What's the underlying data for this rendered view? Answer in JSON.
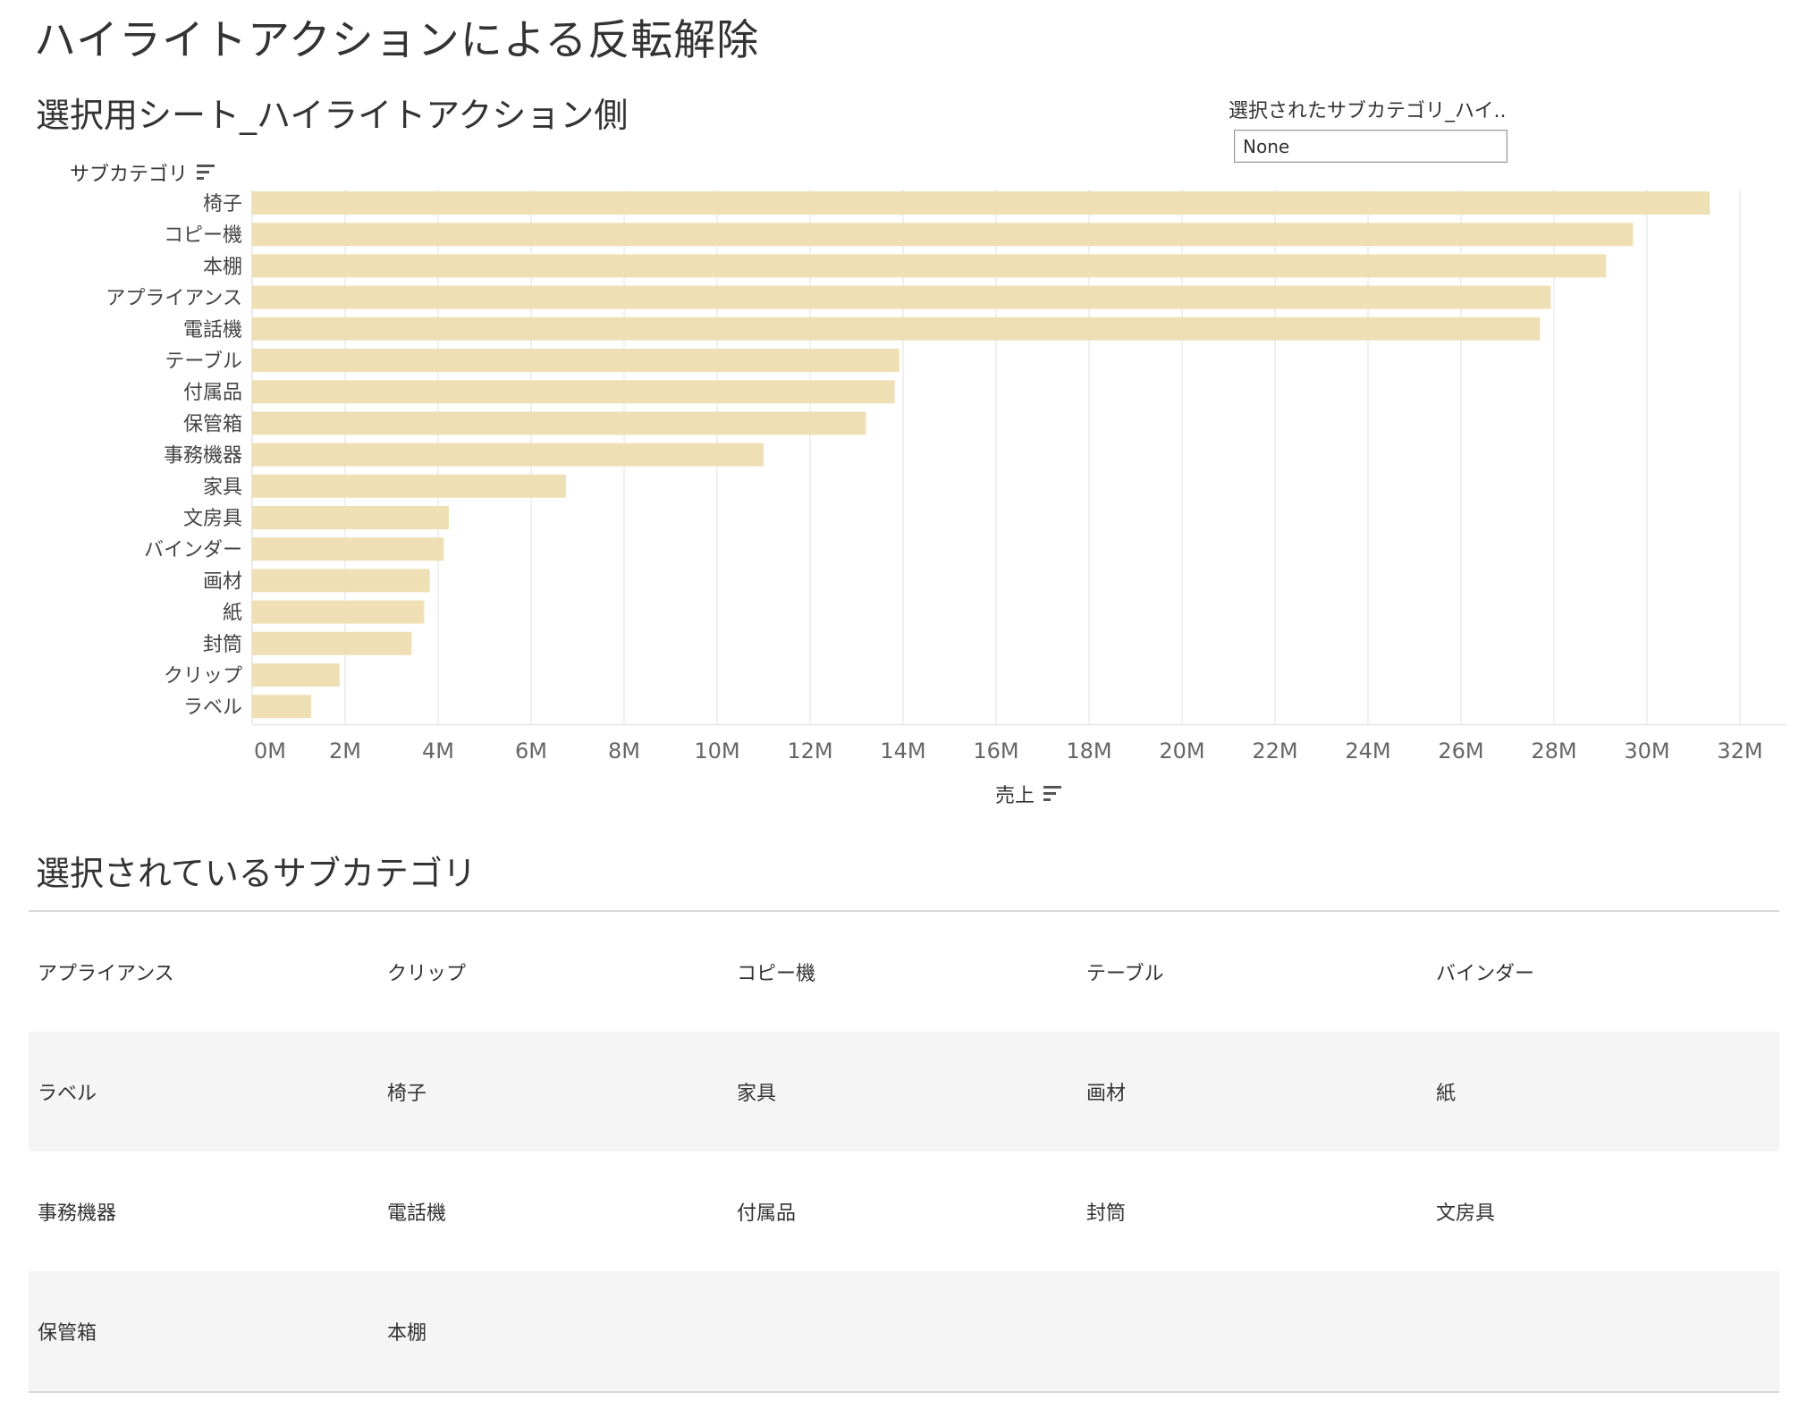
{
  "page": {
    "title": "ハイライトアクションによる反転解除"
  },
  "sheet": {
    "title": "選択用シート_ハイライトアクション側"
  },
  "parameter": {
    "label": "選択されたサブカテゴリ_ハイ..",
    "value": "None"
  },
  "chart_data": {
    "type": "bar",
    "orientation": "horizontal",
    "title": "選択用シート_ハイライトアクション側",
    "ylabel": "サブカテゴリ",
    "xlabel": "売上",
    "categories": [
      "椅子",
      "コピー機",
      "本棚",
      "アプライアンス",
      "電話機",
      "テーブル",
      "付属品",
      "保管箱",
      "事務機器",
      "家具",
      "文房具",
      "バインダー",
      "画材",
      "紙",
      "封筒",
      "クリップ",
      "ラベル"
    ],
    "values": [
      31.35,
      29.7,
      29.12,
      27.93,
      27.7,
      13.92,
      13.82,
      13.2,
      11.0,
      6.75,
      4.23,
      4.12,
      3.82,
      3.7,
      3.43,
      1.88,
      1.27
    ],
    "value_unit": "M",
    "xlim": [
      0,
      33
    ],
    "x_ticks": [
      "0M",
      "2M",
      "4M",
      "6M",
      "8M",
      "10M",
      "12M",
      "14M",
      "16M",
      "18M",
      "20M",
      "22M",
      "24M",
      "26M",
      "28M",
      "30M",
      "32M"
    ],
    "x_tick_values": [
      0,
      2,
      4,
      6,
      8,
      10,
      12,
      14,
      16,
      18,
      20,
      22,
      24,
      26,
      28,
      30,
      32
    ],
    "grid": true,
    "bar_color": "#efdfb5",
    "grid_color": "#ececec"
  },
  "selected_list": {
    "title": "選択されているサブカテゴリ",
    "rows": [
      [
        "アプライアンス",
        "クリップ",
        "コピー機",
        "テーブル",
        "バインダー"
      ],
      [
        "ラベル",
        "椅子",
        "家具",
        "画材",
        "紙"
      ],
      [
        "事務機器",
        "電話機",
        "付属品",
        "封筒",
        "文房具"
      ],
      [
        "保管箱",
        "本棚",
        "",
        "",
        ""
      ]
    ]
  },
  "icons": {
    "y_sort": "sort-descending-icon",
    "x_sort": "sort-descending-icon"
  }
}
